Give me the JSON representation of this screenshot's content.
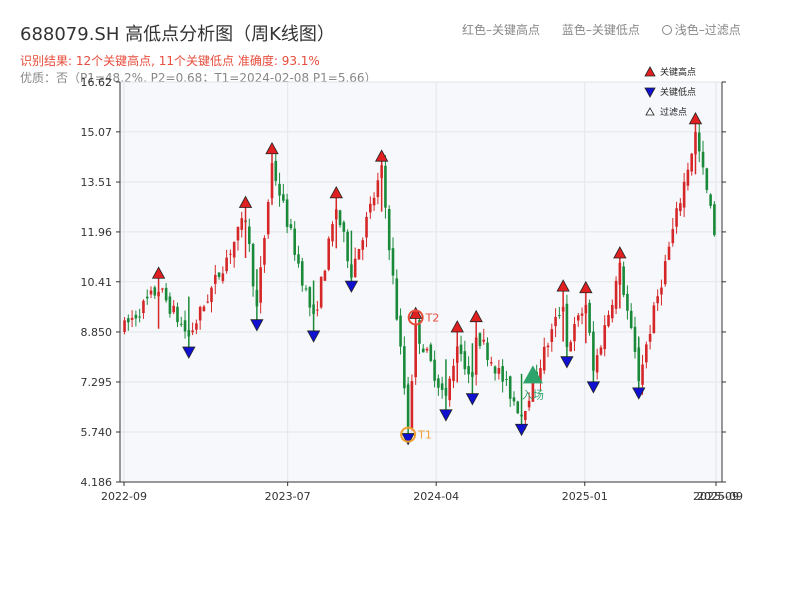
{
  "header": {
    "title": "688079.SH 高低点分析图（周K线图）",
    "result": "识别结果: 12个关键高点, 11个关键低点   准确度: 93.1%",
    "quality": "优质：否（P1=48.2%, P2=0.68；T1=2024-02-08 P1=5.66）"
  },
  "top_legend": {
    "red": "红色–关键高点",
    "blue": "蓝色–关键低点",
    "light": "浅色–过滤点"
  },
  "colors": {
    "up": "#d62728",
    "down": "#1a8a3a",
    "high_marker": "#e02020",
    "low_marker": "#1010d0",
    "entry": "#2ea36b",
    "t1": "#f0a030",
    "t2": "#e74c3c",
    "plot_bg": "#f6f8fb",
    "grid": "#e3e6ea"
  },
  "chart_data": {
    "type": "candlestick",
    "title": "688079.SH 高低点分析图（周K线图）",
    "ylim": [
      4.186,
      16.62
    ],
    "yticks": [
      "4.186",
      "5.740",
      "7.295",
      "8.850",
      "10.41",
      "11.96",
      "13.51",
      "15.07",
      "16.62"
    ],
    "xticks": [
      "2022-09",
      "2023-07",
      "2024-04",
      "2025-01",
      "2025-09"
    ],
    "xticks_overlap_label": "2025-09",
    "legend": {
      "items": [
        {
          "symbol": "up-triangle",
          "label": "关键高点"
        },
        {
          "symbol": "down-triangle",
          "label": "关键低点"
        },
        {
          "symbol": "hollow-triangle",
          "label": "过滤点"
        }
      ],
      "position": "top-right"
    },
    "key_highs": [
      {
        "date": "2022-11-04",
        "price": 10.55
      },
      {
        "date": "2023-04-14",
        "price": 12.75
      },
      {
        "date": "2023-06-02",
        "price": 14.42
      },
      {
        "date": "2023-09-29",
        "price": 13.05
      },
      {
        "date": "2023-12-22",
        "price": 14.19
      },
      {
        "date": "2024-02-23",
        "price": 9.3
      },
      {
        "date": "2024-05-10",
        "price": 8.88
      },
      {
        "date": "2024-06-14",
        "price": 9.2
      },
      {
        "date": "2024-11-22",
        "price": 10.15
      },
      {
        "date": "2025-01-03",
        "price": 10.1
      },
      {
        "date": "2025-03-07",
        "price": 11.18
      },
      {
        "date": "2025-07-25",
        "price": 15.35
      }
    ],
    "key_lows": [
      {
        "date": "2022-12-30",
        "price": 8.35
      },
      {
        "date": "2023-05-05",
        "price": 9.2
      },
      {
        "date": "2023-08-18",
        "price": 8.85
      },
      {
        "date": "2023-10-27",
        "price": 10.4
      },
      {
        "date": "2024-02-09",
        "price": 5.66
      },
      {
        "date": "2024-04-19",
        "price": 6.4
      },
      {
        "date": "2024-06-07",
        "price": 6.9
      },
      {
        "date": "2024-09-06",
        "price": 5.95
      },
      {
        "date": "2024-11-29",
        "price": 8.05
      },
      {
        "date": "2025-01-17",
        "price": 7.27
      },
      {
        "date": "2025-04-11",
        "price": 7.08
      }
    ],
    "annotations": {
      "t1": {
        "label": "T1",
        "date": "2024-02-09",
        "price": 5.66
      },
      "t2": {
        "label": "T2",
        "date": "2024-02-23",
        "price": 9.3
      },
      "entry": {
        "label": "入场",
        "date": "2024-09-27",
        "price": 7.5
      }
    }
  }
}
